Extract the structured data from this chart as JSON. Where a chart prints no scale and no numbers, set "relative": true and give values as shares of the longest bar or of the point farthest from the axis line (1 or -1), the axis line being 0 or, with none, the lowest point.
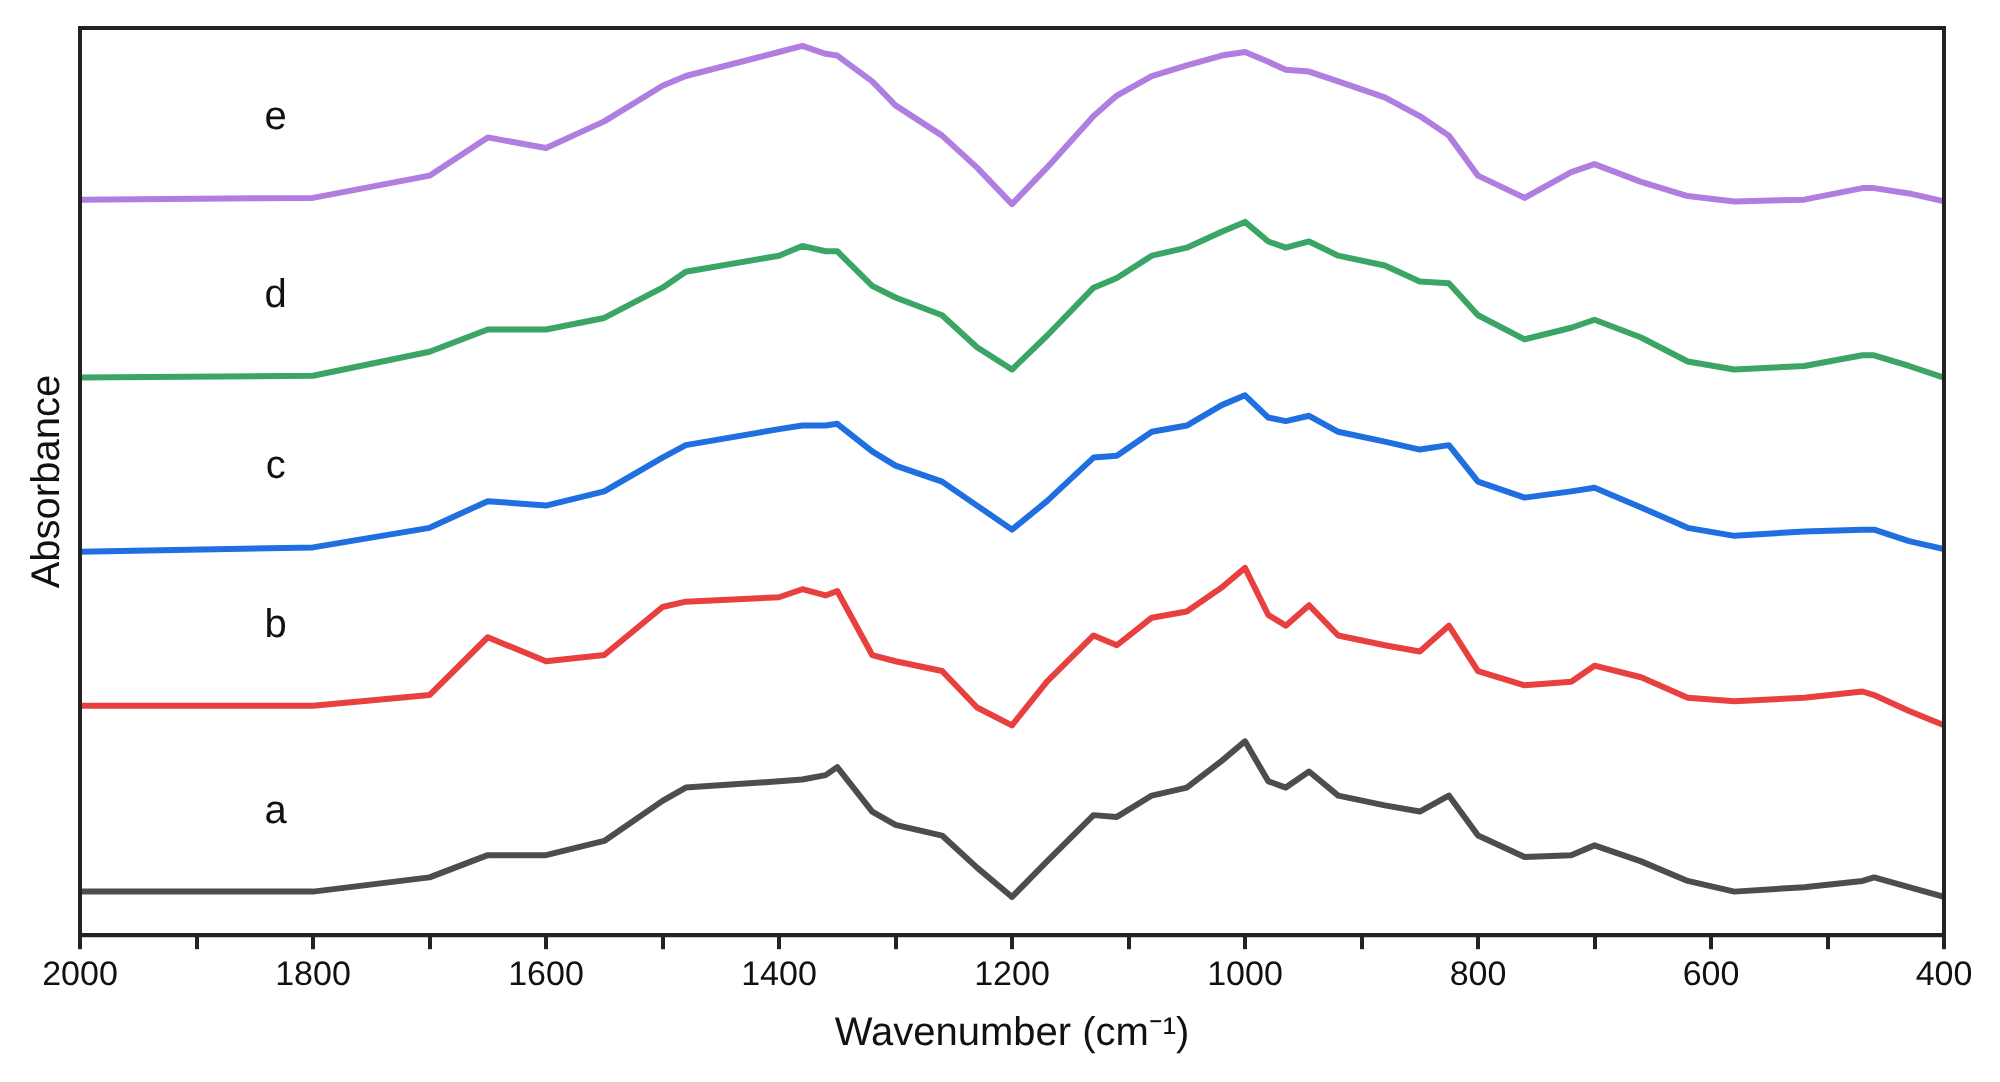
{
  "chart_data": {
    "type": "line",
    "relative": true,
    "xlabel": "Wavenumber (cm⁻¹)",
    "ylabel": "Absorbance",
    "grid": false,
    "legend": false,
    "marker": "none",
    "line_style": "solid",
    "tick_labels": "x",
    "xlim": [
      2000,
      400
    ],
    "xticks": [
      2000,
      {
        "value": 1900,
        "label": null
      },
      1800,
      {
        "value": 1700,
        "label": null
      },
      1600,
      {
        "value": 1500,
        "label": null
      },
      1400,
      {
        "value": 1300,
        "label": null
      },
      1200,
      {
        "value": 1100,
        "label": null
      },
      1000,
      {
        "value": 900,
        "label": null
      },
      800,
      {
        "value": 700,
        "label": null
      },
      600,
      {
        "value": 500,
        "label": null
      },
      400
    ],
    "x": [
      2000,
      1800,
      1700,
      1650,
      1600,
      1550,
      1500,
      1480,
      1400,
      1380,
      1360,
      1350,
      1320,
      1300,
      1260,
      1230,
      1200,
      1170,
      1130,
      1110,
      1080,
      1050,
      1020,
      1000,
      980,
      965,
      945,
      920,
      880,
      850,
      825,
      800,
      760,
      720,
      700,
      660,
      620,
      580,
      520,
      470,
      460,
      430,
      400
    ],
    "series": [
      {
        "name": "a",
        "color": "#4d4d4d",
        "values": [
          0.049,
          0.049,
          0.065,
          0.09,
          0.09,
          0.106,
          0.151,
          0.166,
          0.173,
          0.175,
          0.18,
          0.189,
          0.139,
          0.124,
          0.112,
          0.076,
          0.043,
          0.083,
          0.135,
          0.133,
          0.157,
          0.166,
          0.196,
          0.218,
          0.173,
          0.166,
          0.184,
          0.157,
          0.146,
          0.139,
          0.157,
          0.112,
          0.088,
          0.09,
          0.101,
          0.083,
          0.061,
          0.049,
          0.054,
          0.061,
          0.065,
          0.054,
          0.043
        ]
      },
      {
        "name": "b",
        "color": "#e8403f",
        "values": [
          0.258,
          0.258,
          0.27,
          0.335,
          0.308,
          0.315,
          0.369,
          0.375,
          0.38,
          0.389,
          0.382,
          0.387,
          0.315,
          0.308,
          0.297,
          0.256,
          0.236,
          0.285,
          0.337,
          0.326,
          0.357,
          0.364,
          0.391,
          0.413,
          0.36,
          0.348,
          0.371,
          0.337,
          0.326,
          0.319,
          0.348,
          0.297,
          0.281,
          0.285,
          0.303,
          0.29,
          0.267,
          0.263,
          0.267,
          0.274,
          0.27,
          0.252,
          0.236
        ]
      },
      {
        "name": "c",
        "color": "#1f6fe0",
        "values": [
          0.431,
          0.436,
          0.458,
          0.488,
          0.483,
          0.499,
          0.537,
          0.551,
          0.569,
          0.573,
          0.573,
          0.575,
          0.544,
          0.528,
          0.51,
          0.483,
          0.456,
          0.488,
          0.537,
          0.539,
          0.566,
          0.573,
          0.596,
          0.607,
          0.582,
          0.578,
          0.584,
          0.566,
          0.555,
          0.546,
          0.551,
          0.51,
          0.492,
          0.499,
          0.503,
          0.481,
          0.458,
          0.449,
          0.454,
          0.456,
          0.456,
          0.443,
          0.434
        ]
      },
      {
        "name": "d",
        "color": "#3aa565",
        "values": [
          0.627,
          0.629,
          0.656,
          0.681,
          0.681,
          0.694,
          0.728,
          0.746,
          0.764,
          0.775,
          0.769,
          0.769,
          0.73,
          0.717,
          0.697,
          0.661,
          0.636,
          0.674,
          0.728,
          0.739,
          0.764,
          0.773,
          0.791,
          0.802,
          0.78,
          0.773,
          0.78,
          0.764,
          0.753,
          0.735,
          0.733,
          0.697,
          0.67,
          0.683,
          0.692,
          0.672,
          0.645,
          0.636,
          0.64,
          0.652,
          0.652,
          0.64,
          0.627
        ]
      },
      {
        "name": "e",
        "color": "#b07de0",
        "values": [
          0.827,
          0.829,
          0.854,
          0.897,
          0.885,
          0.915,
          0.955,
          0.966,
          0.993,
          1.0,
          0.991,
          0.989,
          0.96,
          0.933,
          0.899,
          0.863,
          0.822,
          0.863,
          0.921,
          0.944,
          0.966,
          0.978,
          0.989,
          0.993,
          0.982,
          0.973,
          0.971,
          0.96,
          0.942,
          0.921,
          0.899,
          0.854,
          0.829,
          0.858,
          0.867,
          0.847,
          0.831,
          0.825,
          0.827,
          0.84,
          0.84,
          0.834,
          0.825
        ]
      }
    ]
  }
}
